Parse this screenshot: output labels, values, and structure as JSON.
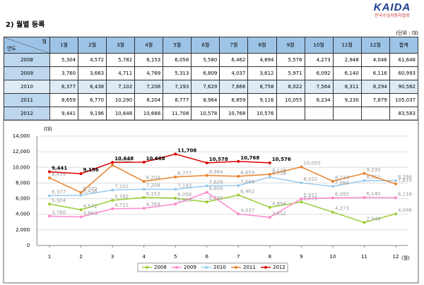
{
  "header": {
    "logo": "KAIDA",
    "logo_sub": "한국수입자동차협회",
    "title": "2) 월별 등록",
    "unit": "(단위 : 대)"
  },
  "table": {
    "corner_top": "월",
    "corner_bottom": "연도",
    "columns": [
      "1월",
      "2월",
      "3월",
      "4월",
      "5월",
      "6월",
      "7월",
      "8월",
      "9월",
      "10월",
      "11월",
      "12월",
      "합계"
    ],
    "rows": [
      [
        "2008",
        "5,304",
        "4,572",
        "5,782",
        "6,153",
        "6,058",
        "5,580",
        "6,462",
        "4,894",
        "5,576",
        "4,273",
        "2,948",
        "4,046",
        "61,648"
      ],
      [
        "2009",
        "3,760",
        "3,663",
        "4,711",
        "4,769",
        "5,313",
        "6,809",
        "4,037",
        "3,612",
        "5,971",
        "6,092",
        "6,140",
        "6,116",
        "60,993"
      ],
      [
        "2010",
        "6,377",
        "6,438",
        "7,102",
        "7,208",
        "7,193",
        "7,629",
        "7,666",
        "8,758",
        "8,022",
        "7,564",
        "8,311",
        "8,294",
        "90,562"
      ],
      [
        "2011",
        "8,659",
        "6,770",
        "10,290",
        "8,204",
        "8,777",
        "8,964",
        "8,859",
        "9,116",
        "10,055",
        "8,234",
        "9,230",
        "7,879",
        "105,037"
      ],
      [
        "2012",
        "9,441",
        "9,196",
        "10,648",
        "10,668",
        "11,708",
        "10,578",
        "10,768",
        "10,576",
        null,
        null,
        null,
        null,
        "83,583"
      ]
    ]
  },
  "chart_data": {
    "type": "line",
    "y_unit": "(대)",
    "x_unit": "(월)",
    "x": [
      1,
      2,
      3,
      4,
      5,
      6,
      7,
      8,
      9,
      10,
      11,
      12
    ],
    "xlim": [
      0.6,
      12.4
    ],
    "ylim": [
      0,
      14000
    ],
    "yticks": [
      0,
      {
        "value": 2000,
        "label": "2,000"
      },
      {
        "value": 4000,
        "label": "4,000"
      },
      {
        "value": 6000,
        "label": "6,000"
      },
      {
        "value": 8000,
        "label": "8,000"
      },
      {
        "value": 10000,
        "label": "10,000"
      },
      {
        "value": 12000,
        "label": "12,000"
      },
      {
        "value": 14000,
        "label": "14,000"
      }
    ],
    "grid": true,
    "legend": "bottom",
    "series": [
      {
        "name": "2008",
        "color": "#99cc33",
        "values": [
          5304,
          4572,
          5782,
          6153,
          6058,
          5580,
          6462,
          4894,
          5576,
          4273,
          2948,
          4046
        ],
        "value_labels": [
          "5,304",
          "4,572",
          "5,782",
          "6,153",
          "6,058",
          "5,580",
          "6,462",
          "4,894",
          "5,576",
          "4,273",
          "2,948",
          "4,046"
        ]
      },
      {
        "name": "2009",
        "color": "#ff88cc",
        "values": [
          3760,
          3663,
          4711,
          4769,
          5313,
          6809,
          4037,
          3612,
          5971,
          6092,
          6140,
          6116
        ],
        "value_labels": [
          "3,760",
          "3,663",
          "4,711",
          "4,769",
          "5,313",
          "6,809",
          "4,037",
          "3,612",
          "5,971",
          "6,092",
          "6,140",
          "6,116"
        ]
      },
      {
        "name": "2010",
        "color": "#99ccee",
        "values": [
          6377,
          6438,
          7102,
          7208,
          7193,
          7629,
          7666,
          8758,
          8022,
          7564,
          8311,
          8294
        ],
        "value_labels": [
          "6,377",
          "6,438",
          "7,102",
          "7,208",
          "7,193",
          "7,629",
          "7,666",
          "8,758",
          "8,022",
          "7,564",
          "8,311",
          "8,294"
        ]
      },
      {
        "name": "2011",
        "color": "#e8822a",
        "values": [
          8659,
          6770,
          10290,
          8204,
          8777,
          8964,
          8859,
          9116,
          10055,
          8234,
          9230,
          7879
        ],
        "value_labels": [
          "8,659",
          "6,770",
          "10,290",
          "8,204",
          "8,777",
          "8,964",
          "8,859",
          "9,116",
          "10,055",
          "8,234",
          "9,230",
          "7,879"
        ]
      },
      {
        "name": "2012",
        "color": "#dd0000",
        "values": [
          9441,
          9196,
          10648,
          10668,
          11708,
          10578,
          10768,
          10576,
          null,
          null,
          null,
          null
        ],
        "value_labels": [
          "9,441",
          "9,196",
          "10,648",
          "10,668",
          "11,708",
          "10,578",
          "10,768",
          "10,576",
          null,
          null,
          null,
          null
        ]
      }
    ]
  }
}
